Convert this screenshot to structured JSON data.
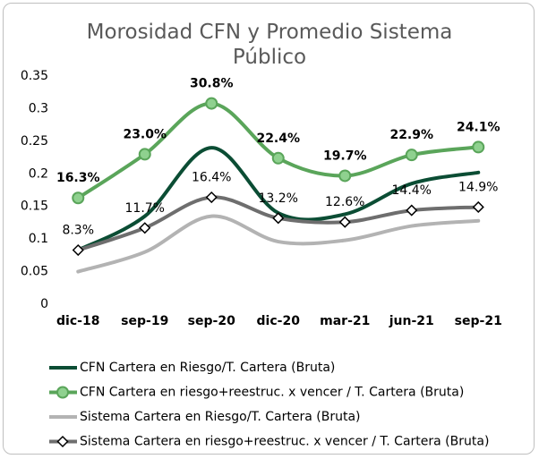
{
  "chart_data": {
    "type": "line",
    "title": "Morosidad CFN y Promedio Sistema Público",
    "categories": [
      "dic-18",
      "sep-19",
      "sep-20",
      "dic-20",
      "mar-21",
      "jun-21",
      "sep-21"
    ],
    "ylim": [
      0,
      0.35
    ],
    "yticks": [
      0,
      0.05,
      0.1,
      0.15,
      0.2,
      0.25,
      0.3,
      0.35
    ],
    "grid": false,
    "legend": "bottom",
    "series": [
      {
        "name": "CFN Cartera en Riesgo/T. Cartera (Bruta)",
        "color": "#0b4d34",
        "values": [
          0.083,
          0.135,
          0.24,
          0.14,
          0.138,
          0.185,
          0.202
        ]
      },
      {
        "name": "CFN Cartera en riesgo+reestruc. x vencer / T. Cartera (Bruta)",
        "color": "#5aa55a",
        "marker": "circle",
        "values": [
          0.163,
          0.23,
          0.308,
          0.224,
          0.197,
          0.229,
          0.241
        ],
        "value_labels": [
          "16.3%",
          "23.0%",
          "30.8%",
          "22.4%",
          "19.7%",
          "22.9%",
          "24.1%"
        ]
      },
      {
        "name": "Sistema Cartera en Riesgo/T. Cartera (Bruta)",
        "color": "#b3b3b3",
        "values": [
          0.05,
          0.08,
          0.135,
          0.096,
          0.098,
          0.12,
          0.128
        ]
      },
      {
        "name": "Sistema Cartera en riesgo+reestruc. x vencer / T. Cartera (Bruta)",
        "color": "#6e6e6e",
        "marker": "diamond",
        "values": [
          0.083,
          0.117,
          0.164,
          0.132,
          0.126,
          0.144,
          0.149
        ],
        "value_labels": [
          "8.3%",
          "11.7%",
          "16.4%",
          "13.2%",
          "12.6%",
          "14.4%",
          "14.9%"
        ]
      }
    ]
  }
}
